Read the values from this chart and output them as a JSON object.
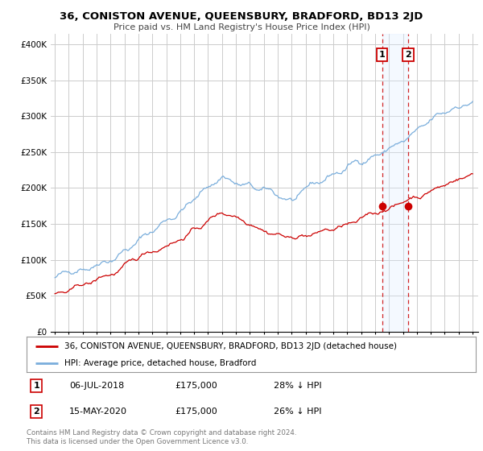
{
  "title": "36, CONISTON AVENUE, QUEENSBURY, BRADFORD, BD13 2JD",
  "subtitle": "Price paid vs. HM Land Registry's House Price Index (HPI)",
  "y_ticks": [
    0,
    50000,
    100000,
    150000,
    200000,
    250000,
    300000,
    350000,
    400000
  ],
  "y_tick_labels": [
    "£0",
    "£50K",
    "£100K",
    "£150K",
    "£200K",
    "£250K",
    "£300K",
    "£350K",
    "£400K"
  ],
  "ylim": [
    0,
    415000
  ],
  "hpi_color": "#7aaedc",
  "price_color": "#cc0000",
  "marker1_year": 2018.5,
  "marker1_val": 175000,
  "marker2_year": 2020.37,
  "marker2_val": 175000,
  "band_color": "#ddeeff",
  "dashed_color": "#cc0000",
  "legend_property": "36, CONISTON AVENUE, QUEENSBURY, BRADFORD, BD13 2JD (detached house)",
  "legend_hpi": "HPI: Average price, detached house, Bradford",
  "table": [
    {
      "label": "1",
      "date": "06-JUL-2018",
      "price": "£175,000",
      "hpi": "28% ↓ HPI"
    },
    {
      "label": "2",
      "date": "15-MAY-2020",
      "price": "£175,000",
      "hpi": "26% ↓ HPI"
    }
  ],
  "footer": "Contains HM Land Registry data © Crown copyright and database right 2024.\nThis data is licensed under the Open Government Licence v3.0.",
  "background_color": "#ffffff",
  "grid_color": "#cccccc"
}
